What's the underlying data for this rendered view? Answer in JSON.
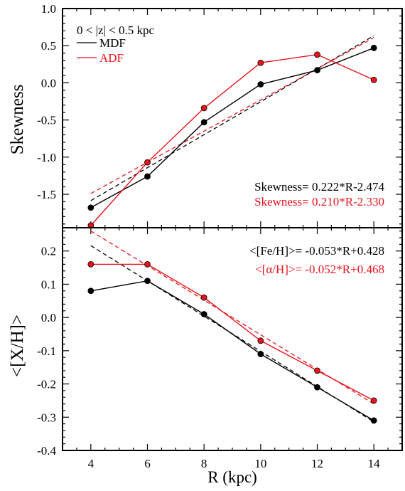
{
  "chart_data": [
    {
      "type": "line",
      "panel": "top",
      "ylabel": "Skewness",
      "ylim": [
        -1.95,
        1.0
      ],
      "xlim": [
        3,
        15
      ],
      "yticks": [
        1.0,
        0.5,
        0.0,
        -0.5,
        -1.0,
        -1.5
      ],
      "ytick_labels": [
        "1.0",
        "0.5",
        "0.0",
        "-0.5",
        "-1.0",
        "-1.5"
      ],
      "x": [
        4,
        6,
        8,
        10,
        12,
        14
      ],
      "series": [
        {
          "name": "MDF",
          "color": "#000000",
          "values": [
            -1.68,
            -1.26,
            -0.53,
            -0.02,
            0.17,
            0.47
          ]
        },
        {
          "name": "ADF",
          "color": "#e8141c",
          "values": [
            -1.92,
            -1.07,
            -0.34,
            0.27,
            0.38,
            0.04
          ]
        }
      ],
      "fits": [
        {
          "color": "#000000",
          "slope": 0.222,
          "intercept": -2.474,
          "x_range": [
            4,
            14
          ]
        },
        {
          "color": "#e8141c",
          "slope": 0.21,
          "intercept": -2.33,
          "x_range": [
            4,
            14
          ]
        }
      ],
      "legend_title": "0 < |z| < 0.5 kpc",
      "annotations": [
        {
          "text": "Skewness= 0.222*R-2.474",
          "color": "#000000"
        },
        {
          "text": "Skewness= 0.210*R-2.330",
          "color": "#e8141c"
        }
      ]
    },
    {
      "type": "line",
      "panel": "bottom",
      "ylabel": "<[X/H]>",
      "xlabel": "R (kpc)",
      "ylim": [
        -0.4,
        0.27
      ],
      "xlim": [
        3,
        15
      ],
      "xticks": [
        4,
        6,
        8,
        10,
        12,
        14
      ],
      "xtick_labels": [
        "4",
        "6",
        "8",
        "10",
        "12",
        "14"
      ],
      "yticks": [
        0.2,
        0.1,
        0.0,
        -0.1,
        -0.2,
        -0.3,
        -0.4
      ],
      "ytick_labels": [
        "0.2",
        "0.1",
        "0.0",
        "-0.1",
        "-0.2",
        "-0.3",
        "-0.4"
      ],
      "x": [
        4,
        6,
        8,
        10,
        12,
        14
      ],
      "series": [
        {
          "name": "MDF",
          "color": "#000000",
          "values": [
            0.08,
            0.11,
            0.01,
            -0.11,
            -0.21,
            -0.31
          ]
        },
        {
          "name": "ADF",
          "color": "#e8141c",
          "values": [
            0.16,
            0.16,
            0.06,
            -0.07,
            -0.16,
            -0.25
          ]
        }
      ],
      "fits": [
        {
          "color": "#000000",
          "slope": -0.053,
          "intercept": 0.428,
          "x_range": [
            4,
            14
          ]
        },
        {
          "color": "#e8141c",
          "slope": -0.052,
          "intercept": 0.468,
          "x_range": [
            4,
            14
          ]
        }
      ],
      "annotations": [
        {
          "text": "<[Fe/H]>= -0.053*R+0.428",
          "color": "#000000"
        },
        {
          "text": "<[α/H]>= -0.052*R+0.468",
          "color": "#e8141c"
        }
      ]
    }
  ]
}
